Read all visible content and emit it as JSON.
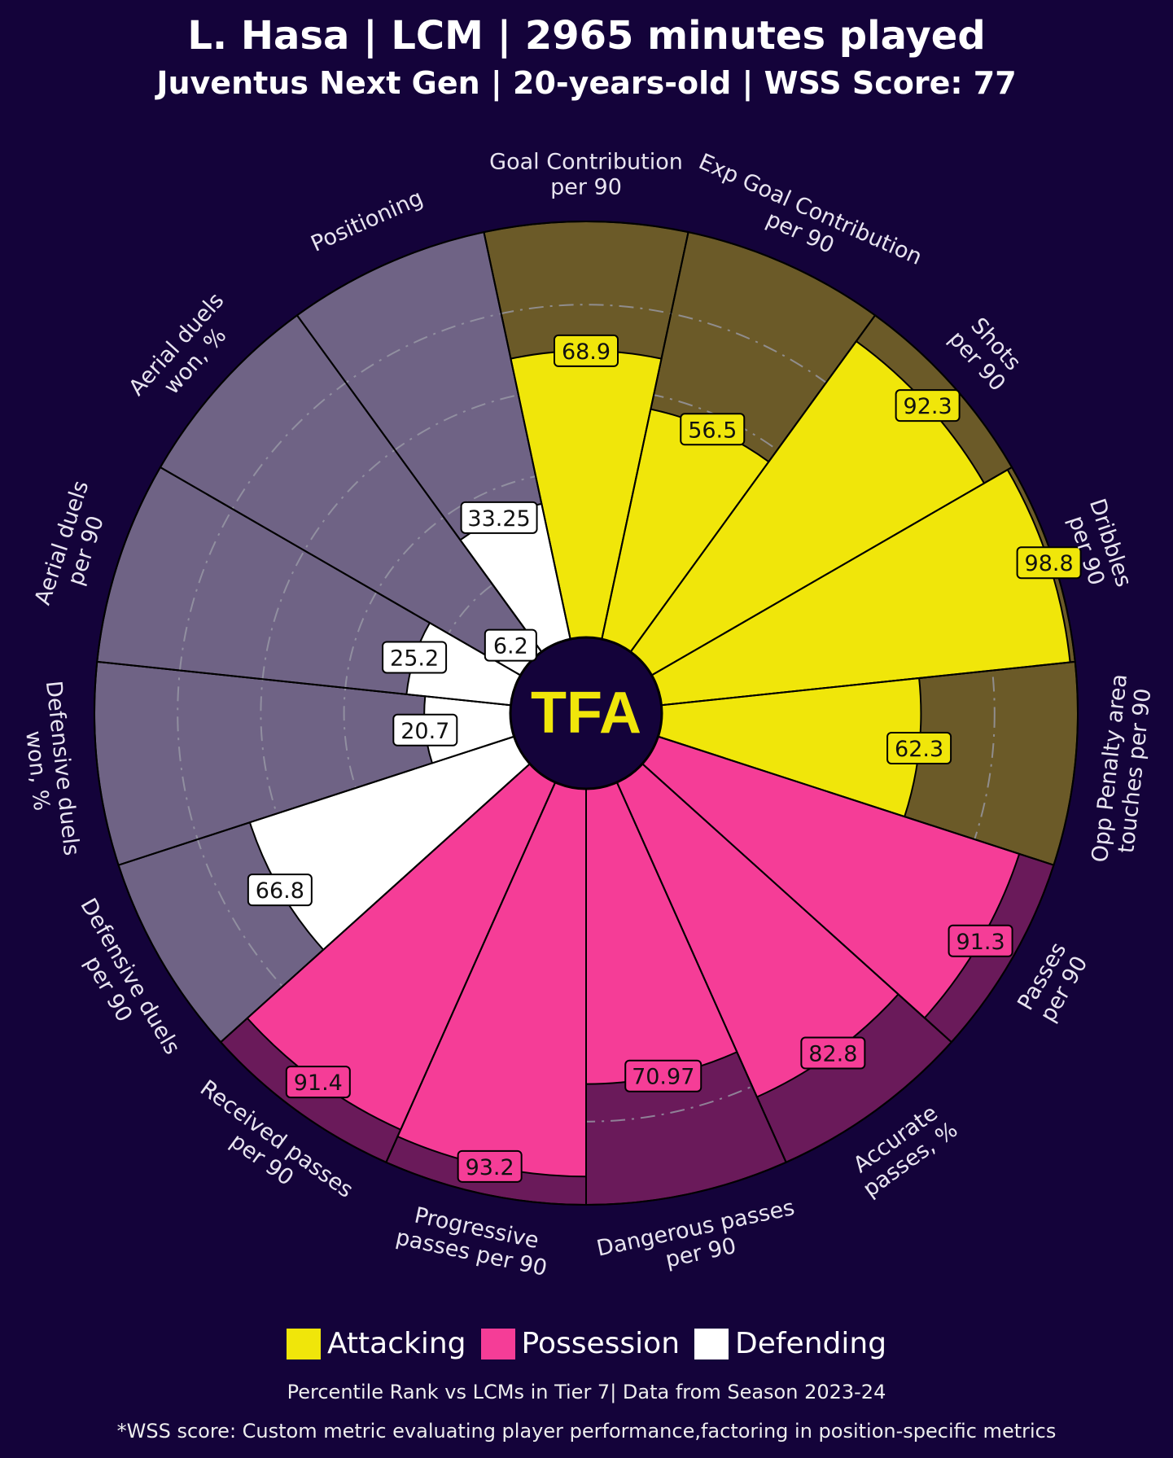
{
  "header": {
    "title": "L. Hasa | LCM | 2965 minutes played",
    "subtitle": "Juventus Next Gen | 20-years-old | WSS Score: 77"
  },
  "logo_text": "TFA",
  "colors": {
    "background": "#14033a",
    "Attacking": "#f0e60a",
    "Possession": "#f53d97",
    "Defending": "#ffffff",
    "Attacking_bg": "#6b5a28",
    "Possession_bg": "#6a1a5a",
    "Defending_bg": "#6f6385"
  },
  "legend": [
    {
      "label": "Attacking",
      "color": "#f0e60a"
    },
    {
      "label": "Possession",
      "color": "#f53d97"
    },
    {
      "label": "Defending",
      "color": "#ffffff"
    }
  ],
  "footer": {
    "line1": "Percentile Rank vs LCMs in Tier 7| Data from Season 2023-24",
    "line2": "*WSS score: Custom metric evaluating player performance,factoring in position-specific metrics"
  },
  "chart_data": {
    "type": "pie",
    "subtype": "pizza/radar percentile",
    "range": [
      0,
      100
    ],
    "gridlines": [
      20,
      40,
      60,
      80
    ],
    "categories": [
      {
        "label": [
          "Goal Contribution",
          "per 90"
        ],
        "value": 68.9,
        "group": "Attacking"
      },
      {
        "label": [
          "Exp Goal Contribution",
          "per 90"
        ],
        "value": 56.5,
        "group": "Attacking"
      },
      {
        "label": [
          "Shots",
          "per 90"
        ],
        "value": 92.3,
        "group": "Attacking"
      },
      {
        "label": [
          "Dribbles",
          "per 90"
        ],
        "value": 98.8,
        "group": "Attacking"
      },
      {
        "label": [
          "Opp Penalty area",
          "touches per 90"
        ],
        "value": 62.3,
        "group": "Attacking"
      },
      {
        "label": [
          "Passes",
          "per 90"
        ],
        "value": 91.3,
        "group": "Possession"
      },
      {
        "label": [
          "Accurate",
          "passes, %"
        ],
        "value": 82.8,
        "group": "Possession"
      },
      {
        "label": [
          "Dangerous passes",
          "per 90"
        ],
        "value": 70.97,
        "group": "Possession"
      },
      {
        "label": [
          "Progressive",
          "passes per 90"
        ],
        "value": 93.2,
        "group": "Possession"
      },
      {
        "label": [
          "Received passes",
          "per 90"
        ],
        "value": 91.4,
        "group": "Possession"
      },
      {
        "label": [
          "Defensive duels",
          "per 90"
        ],
        "value": 66.8,
        "group": "Defending"
      },
      {
        "label": [
          "Defensive duels",
          "won, %"
        ],
        "value": 20.7,
        "group": "Defending"
      },
      {
        "label": [
          "Aerial duels",
          "per 90"
        ],
        "value": 25.2,
        "group": "Defending"
      },
      {
        "label": [
          "Aerial duels",
          "won, %"
        ],
        "value": 6.2,
        "group": "Defending"
      },
      {
        "label": [
          "Positioning"
        ],
        "value": 33.25,
        "group": "Defending"
      }
    ]
  }
}
